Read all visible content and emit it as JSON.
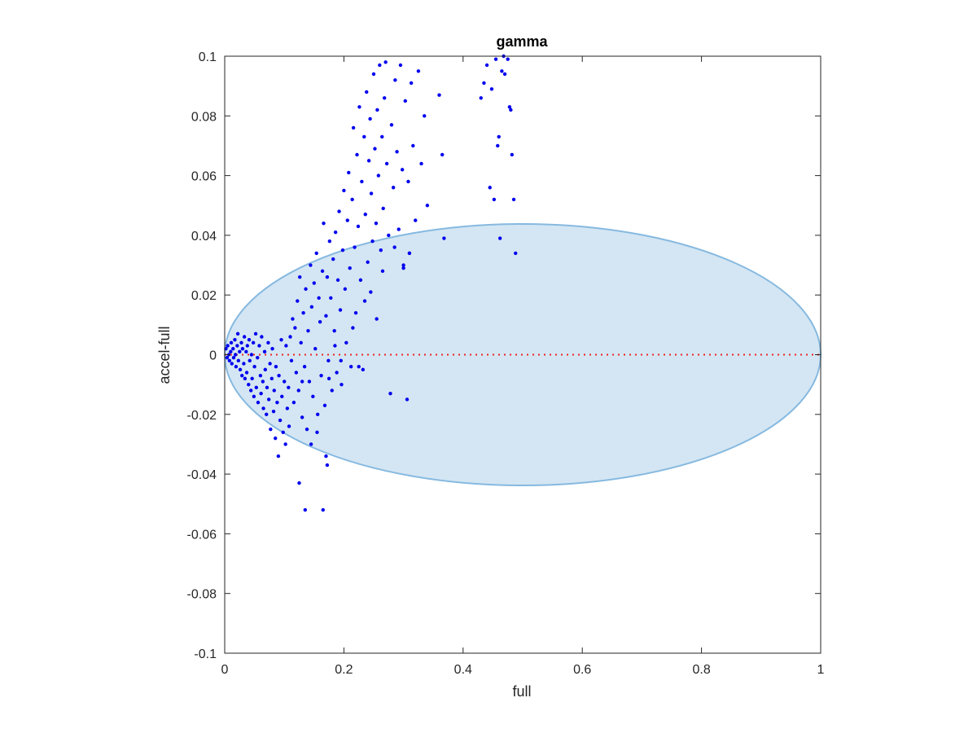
{
  "chart_data": {
    "type": "scatter",
    "title": "gamma",
    "xlabel": "full",
    "ylabel": "accel-full",
    "xlim": [
      0,
      1
    ],
    "ylim": [
      -0.1,
      0.1
    ],
    "x_ticks": [
      "0",
      "0.2",
      "0.4",
      "0.6",
      "0.8",
      "1"
    ],
    "y_ticks": [
      "0.1",
      "0.08",
      "0.06",
      "0.04",
      "0.02",
      "0",
      "-0.02",
      "-0.04",
      "-0.06",
      "-0.08",
      "-0.1"
    ],
    "x_tick_values": [
      0,
      0.2,
      0.4,
      0.6,
      0.8,
      1
    ],
    "y_tick_values": [
      0.1,
      0.08,
      0.06,
      0.04,
      0.02,
      0,
      -0.02,
      -0.04,
      -0.06,
      -0.08,
      -0.1
    ],
    "grid": false,
    "point_color": "#0000ee",
    "reference_line": {
      "y": 0,
      "x_range": [
        0,
        1
      ],
      "color": "#ee2222",
      "style": "dotted"
    },
    "ellipse": {
      "center": [
        0.5,
        0
      ],
      "x_radius": 0.5,
      "y_radius": 0.0438,
      "fill": "#d4e6f3",
      "stroke": "#86b9e0"
    },
    "series": [
      {
        "values": [
          [
            0.002,
            0.002
          ],
          [
            0.004,
            -0.001
          ],
          [
            0.005,
            0.003
          ],
          [
            0.007,
            0.0
          ],
          [
            0.008,
            -0.002
          ],
          [
            0.01,
            0.001
          ],
          [
            0.011,
            0.004
          ],
          [
            0.012,
            -0.003
          ],
          [
            0.014,
            0.002
          ],
          [
            0.015,
            -0.001
          ],
          [
            0.017,
            0.005
          ],
          [
            0.018,
            0.0
          ],
          [
            0.019,
            -0.004
          ],
          [
            0.021,
            0.003
          ],
          [
            0.022,
            0.007
          ],
          [
            0.023,
            -0.002
          ],
          [
            0.025,
            0.001
          ],
          [
            0.026,
            -0.005
          ],
          [
            0.028,
            0.004
          ],
          [
            0.029,
            -0.007
          ],
          [
            0.03,
            0.002
          ],
          [
            0.032,
            -0.003
          ],
          [
            0.033,
            0.006
          ],
          [
            0.034,
            -0.008
          ],
          [
            0.036,
            0.001
          ],
          [
            0.037,
            -0.006
          ],
          [
            0.038,
            0.003
          ],
          [
            0.04,
            -0.01
          ],
          [
            0.041,
            0.005
          ],
          [
            0.042,
            -0.002
          ],
          [
            0.044,
            -0.012
          ],
          [
            0.045,
            0.0
          ],
          [
            0.046,
            -0.008
          ],
          [
            0.048,
            0.004
          ],
          [
            0.049,
            -0.014
          ],
          [
            0.05,
            -0.004
          ],
          [
            0.052,
            0.007
          ],
          [
            0.053,
            -0.011
          ],
          [
            0.055,
            -0.001
          ],
          [
            0.056,
            -0.016
          ],
          [
            0.058,
            0.003
          ],
          [
            0.06,
            -0.007
          ],
          [
            0.061,
            -0.013
          ],
          [
            0.062,
            0.006
          ],
          [
            0.064,
            -0.009
          ],
          [
            0.065,
            -0.018
          ],
          [
            0.067,
            0.001
          ],
          [
            0.068,
            -0.005
          ],
          [
            0.07,
            -0.02
          ],
          [
            0.071,
            -0.011
          ],
          [
            0.073,
            0.004
          ],
          [
            0.074,
            -0.015
          ],
          [
            0.076,
            -0.003
          ],
          [
            0.077,
            -0.025
          ],
          [
            0.079,
            -0.008
          ],
          [
            0.08,
            0.002
          ],
          [
            0.082,
            -0.019
          ],
          [
            0.083,
            -0.012
          ],
          [
            0.085,
            -0.028
          ],
          [
            0.086,
            -0.004
          ],
          [
            0.088,
            -0.016
          ],
          [
            0.09,
            -0.034
          ],
          [
            0.091,
            -0.007
          ],
          [
            0.093,
            -0.022
          ],
          [
            0.095,
            0.005
          ],
          [
            0.096,
            -0.014
          ],
          [
            0.098,
            -0.026
          ],
          [
            0.1,
            -0.009
          ],
          [
            0.102,
            -0.03
          ],
          [
            0.103,
            0.003
          ],
          [
            0.105,
            -0.018
          ],
          [
            0.107,
            -0.011
          ],
          [
            0.108,
            -0.024
          ],
          [
            0.11,
            0.006
          ],
          [
            0.112,
            -0.002
          ],
          [
            0.114,
            0.012
          ],
          [
            0.116,
            -0.016
          ],
          [
            0.118,
            0.009
          ],
          [
            0.12,
            -0.006
          ],
          [
            0.122,
            0.018
          ],
          [
            0.124,
            -0.012
          ],
          [
            0.126,
            0.026
          ],
          [
            0.128,
            0.004
          ],
          [
            0.13,
            -0.021
          ],
          [
            0.132,
            0.014
          ],
          [
            0.134,
            -0.004
          ],
          [
            0.136,
            0.022
          ],
          [
            0.138,
            -0.025
          ],
          [
            0.14,
            0.008
          ],
          [
            0.142,
            -0.009
          ],
          [
            0.144,
            0.03
          ],
          [
            0.146,
            0.016
          ],
          [
            0.148,
            -0.014
          ],
          [
            0.15,
            0.024
          ],
          [
            0.152,
            0.002
          ],
          [
            0.154,
            0.034
          ],
          [
            0.156,
            -0.02
          ],
          [
            0.158,
            0.019
          ],
          [
            0.16,
            0.011
          ],
          [
            0.162,
            -0.007
          ],
          [
            0.164,
            0.028
          ],
          [
            0.166,
            0.044
          ],
          [
            0.168,
            -0.017
          ],
          [
            0.17,
            0.013
          ],
          [
            0.172,
            0.026
          ],
          [
            0.174,
            -0.002
          ],
          [
            0.176,
            0.038
          ],
          [
            0.178,
            0.019
          ],
          [
            0.18,
            -0.012
          ],
          [
            0.182,
            0.032
          ],
          [
            0.184,
            0.008
          ],
          [
            0.186,
            0.041
          ],
          [
            0.188,
            -0.006
          ],
          [
            0.19,
            0.025
          ],
          [
            0.192,
            0.048
          ],
          [
            0.194,
            0.015
          ],
          [
            0.196,
            -0.01
          ],
          [
            0.198,
            0.035
          ],
          [
            0.2,
            0.055
          ],
          [
            0.202,
            0.022
          ],
          [
            0.204,
            0.004
          ],
          [
            0.206,
            0.045
          ],
          [
            0.208,
            0.061
          ],
          [
            0.21,
            0.029
          ],
          [
            0.212,
            -0.004
          ],
          [
            0.214,
            0.052
          ],
          [
            0.216,
            0.076
          ],
          [
            0.218,
            0.036
          ],
          [
            0.22,
            0.014
          ],
          [
            0.222,
            0.067
          ],
          [
            0.224,
            0.043
          ],
          [
            0.226,
            0.083
          ],
          [
            0.228,
            0.025
          ],
          [
            0.23,
            0.058
          ],
          [
            0.232,
            -0.005
          ],
          [
            0.234,
            0.073
          ],
          [
            0.236,
            0.047
          ],
          [
            0.238,
            0.088
          ],
          [
            0.24,
            0.031
          ],
          [
            0.242,
            0.065
          ],
          [
            0.244,
            0.079
          ],
          [
            0.246,
            0.054
          ],
          [
            0.248,
            0.038
          ],
          [
            0.25,
            0.094
          ],
          [
            0.252,
            0.069
          ],
          [
            0.254,
            0.044
          ],
          [
            0.256,
            0.082
          ],
          [
            0.258,
            0.06
          ],
          [
            0.26,
            0.097
          ],
          [
            0.262,
            0.035
          ],
          [
            0.264,
            0.073
          ],
          [
            0.266,
            0.049
          ],
          [
            0.268,
            0.086
          ],
          [
            0.27,
            0.098
          ],
          [
            0.272,
            0.064
          ],
          [
            0.275,
            0.04
          ],
          [
            0.278,
            -0.013
          ],
          [
            0.28,
            0.077
          ],
          [
            0.283,
            0.056
          ],
          [
            0.286,
            0.092
          ],
          [
            0.289,
            0.068
          ],
          [
            0.292,
            0.042
          ],
          [
            0.295,
            0.097
          ],
          [
            0.298,
            0.062
          ],
          [
            0.3,
            0.03
          ],
          [
            0.303,
            0.085
          ],
          [
            0.306,
            -0.015
          ],
          [
            0.308,
            0.058
          ],
          [
            0.31,
            0.034
          ],
          [
            0.313,
            0.091
          ],
          [
            0.316,
            0.07
          ],
          [
            0.32,
            0.045
          ],
          [
            0.325,
            0.095
          ],
          [
            0.33,
            0.064
          ],
          [
            0.335,
            0.08
          ],
          [
            0.34,
            0.05
          ],
          [
            0.36,
            0.087
          ],
          [
            0.365,
            0.067
          ],
          [
            0.368,
            0.039
          ],
          [
            0.43,
            0.086
          ],
          [
            0.435,
            0.091
          ],
          [
            0.44,
            0.097
          ],
          [
            0.445,
            0.056
          ],
          [
            0.448,
            0.089
          ],
          [
            0.452,
            0.052
          ],
          [
            0.455,
            0.099
          ],
          [
            0.458,
            0.07
          ],
          [
            0.46,
            0.073
          ],
          [
            0.462,
            0.039
          ],
          [
            0.465,
            0.095
          ],
          [
            0.468,
            0.1
          ],
          [
            0.47,
            0.094
          ],
          [
            0.475,
            0.099
          ],
          [
            0.478,
            0.083
          ],
          [
            0.48,
            0.082
          ],
          [
            0.482,
            0.067
          ],
          [
            0.485,
            0.052
          ],
          [
            0.488,
            0.034
          ],
          [
            0.125,
            -0.043
          ],
          [
            0.135,
            -0.052
          ],
          [
            0.165,
            -0.052
          ],
          [
            0.17,
            -0.034
          ],
          [
            0.172,
            -0.037
          ],
          [
            0.13,
            -0.009
          ],
          [
            0.145,
            -0.03
          ],
          [
            0.155,
            -0.026
          ],
          [
            0.175,
            -0.008
          ],
          [
            0.185,
            0.003
          ],
          [
            0.195,
            -0.002
          ],
          [
            0.215,
            0.009
          ],
          [
            0.225,
            -0.004
          ],
          [
            0.235,
            0.018
          ],
          [
            0.245,
            0.021
          ],
          [
            0.255,
            0.012
          ],
          [
            0.265,
            0.028
          ],
          [
            0.285,
            0.036
          ],
          [
            0.3,
            0.029
          ],
          [
            0.31,
            0.034
          ]
        ]
      }
    ]
  }
}
